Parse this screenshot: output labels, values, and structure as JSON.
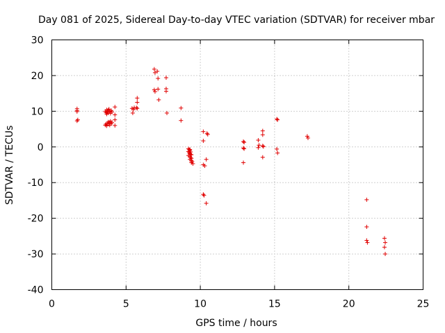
{
  "chart_data": {
    "type": "scatter",
    "title": "Day 081 of 2025, Sidereal Day-to-day VTEC variation (SDTVAR) for receiver mbar",
    "xlabel": "GPS time / hours",
    "ylabel": "SDTVAR / TECUs",
    "xlim": [
      0,
      25
    ],
    "ylim": [
      -40,
      30
    ],
    "x_ticks": [
      0,
      5,
      10,
      15,
      20,
      25
    ],
    "y_ticks": [
      -40,
      -30,
      -20,
      -10,
      0,
      10,
      20,
      30
    ],
    "x_tick_labels": [
      "0",
      "5",
      "10",
      "15",
      "20",
      "25"
    ],
    "y_tick_labels": [
      "-40",
      "-30",
      "-20",
      "-10",
      "0",
      "10",
      "20",
      "30"
    ],
    "grid": true,
    "marker": "plus",
    "color": "#e00000",
    "series": [
      {
        "name": "SDTVAR",
        "points": [
          [
            1.7,
            10.7
          ],
          [
            1.7,
            10.2
          ],
          [
            1.7,
            9.9
          ],
          [
            1.75,
            7.6
          ],
          [
            1.7,
            7.3
          ],
          [
            3.6,
            10.0
          ],
          [
            3.65,
            9.6
          ],
          [
            3.7,
            9.2
          ],
          [
            3.75,
            9.8
          ],
          [
            3.8,
            10.3
          ],
          [
            3.8,
            9.5
          ],
          [
            3.85,
            10.6
          ],
          [
            3.9,
            10.0
          ],
          [
            3.95,
            9.4
          ],
          [
            4.0,
            10.2
          ],
          [
            4.05,
            9.8
          ],
          [
            3.7,
            10.4
          ],
          [
            3.6,
            6.1
          ],
          [
            3.65,
            6.4
          ],
          [
            3.7,
            5.9
          ],
          [
            3.75,
            6.6
          ],
          [
            3.8,
            7.0
          ],
          [
            3.85,
            6.5
          ],
          [
            3.9,
            6.9
          ],
          [
            3.95,
            7.2
          ],
          [
            4.0,
            6.5
          ],
          [
            4.05,
            6.9
          ],
          [
            3.9,
            6.1
          ],
          [
            4.25,
            11.2
          ],
          [
            4.25,
            9.0
          ],
          [
            4.25,
            7.6
          ],
          [
            4.25,
            6.0
          ],
          [
            5.4,
            10.8
          ],
          [
            5.5,
            10.5
          ],
          [
            5.45,
            9.5
          ],
          [
            5.55,
            11.0
          ],
          [
            5.7,
            11.0
          ],
          [
            5.75,
            13.7
          ],
          [
            5.75,
            12.5
          ],
          [
            5.75,
            10.8
          ],
          [
            6.9,
            21.8
          ],
          [
            6.95,
            20.8
          ],
          [
            7.1,
            21.2
          ],
          [
            7.15,
            19.2
          ],
          [
            6.9,
            16.0
          ],
          [
            6.95,
            15.5
          ],
          [
            7.15,
            16.2
          ],
          [
            7.2,
            13.2
          ],
          [
            7.7,
            19.4
          ],
          [
            7.7,
            16.3
          ],
          [
            7.7,
            15.6
          ],
          [
            7.75,
            9.5
          ],
          [
            8.7,
            10.9
          ],
          [
            8.7,
            7.4
          ],
          [
            9.2,
            -0.5
          ],
          [
            9.25,
            -0.8
          ],
          [
            9.3,
            -1.0
          ],
          [
            9.2,
            -1.3
          ],
          [
            9.25,
            -1.6
          ],
          [
            9.3,
            -1.9
          ],
          [
            9.35,
            -2.1
          ],
          [
            9.2,
            -2.4
          ],
          [
            9.3,
            -2.7
          ],
          [
            9.35,
            -3.0
          ],
          [
            9.4,
            -3.2
          ],
          [
            9.3,
            -3.5
          ],
          [
            9.4,
            -3.8
          ],
          [
            9.45,
            -4.1
          ],
          [
            9.4,
            -4.4
          ],
          [
            9.5,
            -4.7
          ],
          [
            9.3,
            -0.7
          ],
          [
            9.35,
            -1.4
          ],
          [
            9.4,
            -2.2
          ],
          [
            10.2,
            4.3
          ],
          [
            10.2,
            1.7
          ],
          [
            10.2,
            -5.0
          ],
          [
            10.3,
            -5.3
          ],
          [
            10.2,
            -13.3
          ],
          [
            10.25,
            -13.6
          ],
          [
            10.4,
            -15.8
          ],
          [
            10.4,
            -3.5
          ],
          [
            10.45,
            3.8
          ],
          [
            10.5,
            3.5
          ],
          [
            12.9,
            1.5
          ],
          [
            12.95,
            1.3
          ],
          [
            12.9,
            -0.3
          ],
          [
            12.95,
            -0.5
          ],
          [
            12.9,
            -4.4
          ],
          [
            13.9,
            1.9
          ],
          [
            13.95,
            0.5
          ],
          [
            13.9,
            -0.2
          ],
          [
            14.2,
            4.5
          ],
          [
            14.2,
            3.4
          ],
          [
            14.2,
            0.3
          ],
          [
            14.25,
            0.1
          ],
          [
            14.2,
            -2.9
          ],
          [
            15.15,
            7.8
          ],
          [
            15.2,
            7.6
          ],
          [
            15.15,
            -0.6
          ],
          [
            15.2,
            -1.7
          ],
          [
            17.2,
            3.0
          ],
          [
            17.25,
            2.5
          ],
          [
            21.2,
            -14.8
          ],
          [
            21.2,
            -22.4
          ],
          [
            21.2,
            -26.2
          ],
          [
            21.25,
            -26.8
          ],
          [
            22.4,
            -25.6
          ],
          [
            22.45,
            -26.8
          ],
          [
            22.4,
            -28.1
          ],
          [
            22.45,
            -30.0
          ]
        ]
      }
    ]
  }
}
